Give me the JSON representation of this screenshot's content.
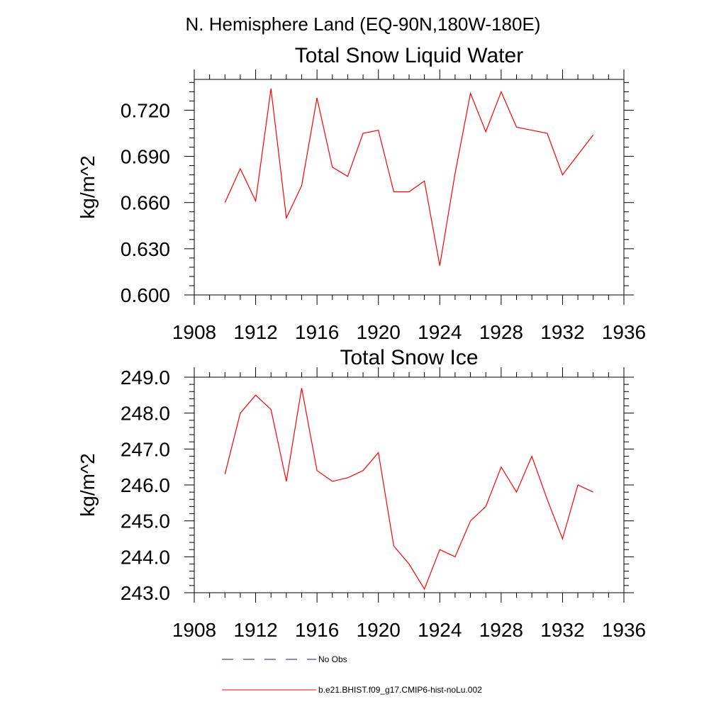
{
  "figure_title": "N. Hemisphere Land (EQ-90N,180W-180E)",
  "chart_data": [
    {
      "type": "line",
      "title": "Total Snow Liquid Water",
      "xlabel": "",
      "ylabel": "kg/m^2",
      "xlim": [
        1908,
        1936
      ],
      "ylim": [
        0.6,
        0.74
      ],
      "xticks": [
        "1908",
        "1912",
        "1916",
        "1920",
        "1924",
        "1928",
        "1932",
        "1936"
      ],
      "yticks": [
        "0.600",
        "0.630",
        "0.660",
        "0.690",
        "0.720"
      ],
      "series": [
        {
          "name": "b.e21.BHIST.f09_g17.CMIP6-hist-noLu.002",
          "color": "#ff0000",
          "x": [
            1910,
            1911,
            1912,
            1913,
            1914,
            1915,
            1916,
            1917,
            1918,
            1919,
            1920,
            1921,
            1922,
            1923,
            1924,
            1925,
            1926,
            1927,
            1928,
            1929,
            1930,
            1931,
            1932,
            1933,
            1934
          ],
          "values": [
            0.66,
            0.682,
            0.661,
            0.734,
            0.65,
            0.671,
            0.728,
            0.683,
            0.677,
            0.705,
            0.707,
            0.667,
            0.667,
            0.674,
            0.619,
            0.679,
            0.731,
            0.706,
            0.732,
            0.709,
            0.707,
            0.705,
            0.678,
            0.691,
            0.704
          ]
        }
      ]
    },
    {
      "type": "line",
      "title": "Total Snow Ice",
      "xlabel": "",
      "ylabel": "kg/m^2",
      "xlim": [
        1908,
        1936
      ],
      "ylim": [
        243.0,
        249.0
      ],
      "xticks": [
        "1908",
        "1912",
        "1916",
        "1920",
        "1924",
        "1928",
        "1932",
        "1936"
      ],
      "yticks": [
        "243.0",
        "244.0",
        "245.0",
        "246.0",
        "247.0",
        "248.0",
        "249.0"
      ],
      "series": [
        {
          "name": "b.e21.BHIST.f09_g17.CMIP6-hist-noLu.002",
          "color": "#ff0000",
          "x": [
            1910,
            1911,
            1912,
            1913,
            1914,
            1915,
            1916,
            1917,
            1918,
            1919,
            1920,
            1921,
            1922,
            1923,
            1924,
            1925,
            1926,
            1927,
            1928,
            1929,
            1930,
            1931,
            1932,
            1933,
            1934
          ],
          "values": [
            246.3,
            248.0,
            248.5,
            248.1,
            246.1,
            248.7,
            246.4,
            246.1,
            246.2,
            246.4,
            246.9,
            244.3,
            243.8,
            243.1,
            244.2,
            244.0,
            245.0,
            245.4,
            246.5,
            245.8,
            246.8,
            245.6,
            244.5,
            246.0,
            245.8
          ]
        }
      ]
    }
  ],
  "legend": [
    {
      "label": "No Obs",
      "color": "#1a1a8c",
      "dash": "dashed"
    },
    {
      "label": "b.e21.BHIST.f09_g17.CMIP6-hist-noLu.002",
      "color": "#ff0000",
      "dash": "solid"
    }
  ]
}
